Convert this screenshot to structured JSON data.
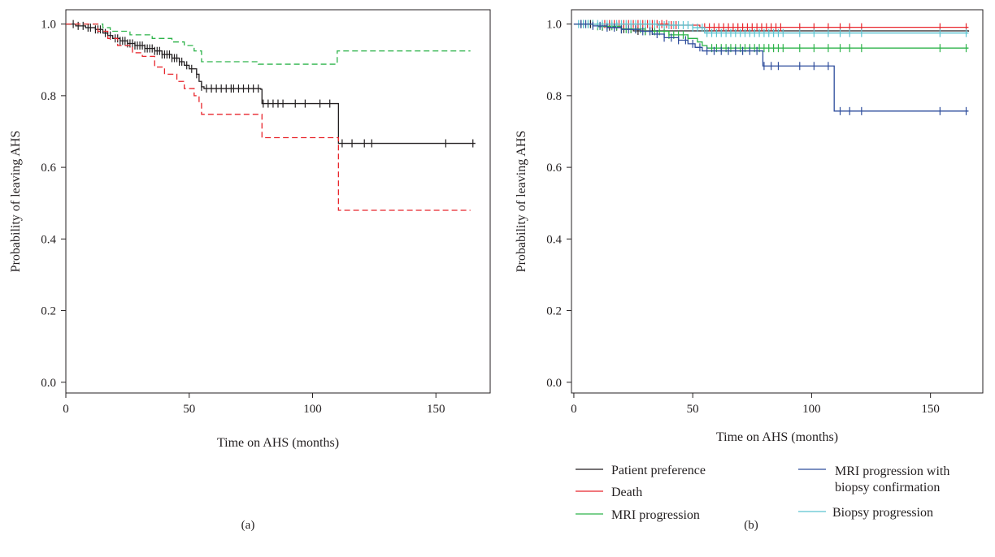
{
  "chart_data": [
    {
      "type": "line",
      "panel_label": "(a)",
      "xlabel": "Time on AHS (months)",
      "ylabel": "Probability of leaving AHS",
      "xlim": [
        0,
        172
      ],
      "ylim": [
        -0.03,
        1.04
      ],
      "xticks": [
        0,
        50,
        100,
        150
      ],
      "xtick_labels": [
        "0",
        "50",
        "100",
        "150"
      ],
      "yticks": [
        0.0,
        0.2,
        0.4,
        0.6,
        0.8,
        1.0
      ],
      "ytick_labels": [
        "0.0",
        "0.2",
        "0.4",
        "0.6",
        "0.8",
        "1.0"
      ],
      "grid": false,
      "series": [
        {
          "color": "#2db34a",
          "dash": "dashed",
          "step": true,
          "points": [
            [
              0,
              1.0
            ],
            [
              15,
              0.99
            ],
            [
              18,
              0.98
            ],
            [
              26,
              0.97
            ],
            [
              35,
              0.96
            ],
            [
              43,
              0.95
            ],
            [
              48,
              0.94
            ],
            [
              52,
              0.925
            ],
            [
              55,
              0.895
            ],
            [
              78,
              0.888
            ],
            [
              110,
              0.925
            ],
            [
              164,
              0.925
            ]
          ],
          "censor_x": []
        },
        {
          "color": "#231f20",
          "dash": "solid",
          "step": true,
          "points": [
            [
              0,
              1.0
            ],
            [
              4,
              0.995
            ],
            [
              8,
              0.99
            ],
            [
              12,
              0.985
            ],
            [
              15,
              0.975
            ],
            [
              17,
              0.968
            ],
            [
              19,
              0.96
            ],
            [
              22,
              0.953
            ],
            [
              25,
              0.946
            ],
            [
              28,
              0.94
            ],
            [
              32,
              0.932
            ],
            [
              36,
              0.925
            ],
            [
              39,
              0.915
            ],
            [
              43,
              0.905
            ],
            [
              46,
              0.895
            ],
            [
              48,
              0.885
            ],
            [
              50,
              0.875
            ],
            [
              53,
              0.86
            ],
            [
              54,
              0.84
            ],
            [
              55,
              0.825
            ],
            [
              56,
              0.82
            ],
            [
              79,
              0.818
            ],
            [
              79.5,
              0.778
            ],
            [
              110,
              0.778
            ],
            [
              110.5,
              0.667
            ],
            [
              166,
              0.667
            ]
          ],
          "censor_x": [
            3,
            5,
            7,
            9,
            10,
            12,
            13,
            14,
            16,
            18,
            20,
            21,
            22,
            23,
            24,
            25,
            26,
            27,
            28,
            29,
            30,
            31,
            32,
            33,
            34,
            35,
            36,
            37,
            38,
            39,
            40,
            41,
            42,
            43,
            44,
            45,
            46,
            47,
            49,
            51,
            53,
            55,
            57,
            59,
            61,
            63,
            65,
            67,
            68,
            70,
            72,
            74,
            76,
            78,
            80,
            82,
            84,
            86,
            88,
            93,
            97,
            103,
            107,
            112,
            116,
            121,
            124,
            154,
            165
          ]
        },
        {
          "color": "#e8262c",
          "dash": "dashed",
          "step": true,
          "points": [
            [
              0,
              1.0
            ],
            [
              13,
              0.98
            ],
            [
              17,
              0.96
            ],
            [
              21,
              0.94
            ],
            [
              27,
              0.92
            ],
            [
              31,
              0.91
            ],
            [
              36,
              0.88
            ],
            [
              40,
              0.86
            ],
            [
              45,
              0.84
            ],
            [
              48,
              0.82
            ],
            [
              52,
              0.8
            ],
            [
              54,
              0.78
            ],
            [
              55,
              0.748
            ],
            [
              79,
              0.748
            ],
            [
              79.5,
              0.683
            ],
            [
              110,
              0.683
            ],
            [
              110.5,
              0.48
            ],
            [
              164,
              0.48
            ]
          ],
          "censor_x": []
        }
      ]
    },
    {
      "type": "line",
      "panel_label": "(b)",
      "xlabel": "Time on AHS (months)",
      "ylabel": "Probability of leaving AHS",
      "xlim": [
        -1,
        172
      ],
      "ylim": [
        -0.03,
        1.04
      ],
      "xticks": [
        0,
        50,
        100,
        150
      ],
      "xtick_labels": [
        "0",
        "50",
        "100",
        "150"
      ],
      "yticks": [
        0.0,
        0.2,
        0.4,
        0.6,
        0.8,
        1.0
      ],
      "ytick_labels": [
        "0.0",
        "0.2",
        "0.4",
        "0.6",
        "0.8",
        "1.0"
      ],
      "grid": false,
      "legend_position": "below",
      "series": [
        {
          "name": "Patient preference",
          "color": "#231f20",
          "dash": "solid",
          "step": true,
          "points": [
            [
              0,
              1.0
            ],
            [
              10,
              0.993
            ],
            [
              20,
              0.986
            ],
            [
              25,
              0.981
            ],
            [
              166,
              0.979
            ]
          ],
          "censor_x": [
            3,
            7,
            12,
            15,
            18,
            21,
            24,
            27,
            30,
            33
          ]
        },
        {
          "name": "Death",
          "color": "#e8262c",
          "dash": "solid",
          "step": true,
          "points": [
            [
              0,
              1.0
            ],
            [
              40,
              0.997
            ],
            [
              53,
              0.991
            ],
            [
              166,
              0.991
            ]
          ],
          "censor_x": [
            13,
            15,
            17,
            19,
            21,
            23,
            25,
            27,
            29,
            31,
            33,
            35,
            37,
            39,
            41,
            43,
            55,
            57,
            59,
            61,
            63,
            65,
            67,
            69,
            71,
            73,
            75,
            77,
            79,
            81,
            83,
            85,
            87,
            95,
            101,
            107,
            112,
            116,
            121,
            154,
            165
          ]
        },
        {
          "name": "MRI progression",
          "color": "#2db34a",
          "dash": "solid",
          "step": true,
          "points": [
            [
              0,
              1.0
            ],
            [
              10,
              0.994
            ],
            [
              20,
              0.986
            ],
            [
              30,
              0.98
            ],
            [
              40,
              0.97
            ],
            [
              48,
              0.96
            ],
            [
              52,
              0.95
            ],
            [
              54,
              0.94
            ],
            [
              56,
              0.933
            ],
            [
              166,
              0.933
            ]
          ],
          "censor_x": [
            4,
            6,
            8,
            10,
            12,
            14,
            16,
            18,
            20,
            22,
            24,
            26,
            28,
            30,
            32,
            34,
            36,
            38,
            40,
            42,
            44,
            46,
            48,
            58,
            60,
            62,
            64,
            66,
            68,
            70,
            72,
            74,
            76,
            78,
            80,
            82,
            84,
            86,
            88,
            95,
            101,
            107,
            112,
            116,
            121,
            154,
            165
          ]
        },
        {
          "name": "Biopsy progression",
          "color": "#5bc4d1",
          "dash": "solid",
          "step": true,
          "points": [
            [
              0,
              1.0
            ],
            [
              35,
              0.997
            ],
            [
              50,
              0.99
            ],
            [
              55,
              0.975
            ],
            [
              166,
              0.975
            ]
          ],
          "censor_x": [
            2,
            4,
            6,
            8,
            10,
            12,
            14,
            16,
            18,
            20,
            22,
            24,
            26,
            28,
            30,
            32,
            34,
            36,
            38,
            40,
            42,
            44,
            46,
            48,
            50,
            52,
            54,
            56,
            58,
            60,
            62,
            64,
            66,
            68,
            70,
            72,
            74,
            76,
            78,
            80,
            82,
            84,
            86,
            88,
            95,
            101,
            107,
            112,
            116,
            121,
            154,
            165
          ]
        },
        {
          "name": "MRI progression with biopsy confirmation",
          "color": "#2e4d9c",
          "dash": "solid",
          "step": true,
          "points": [
            [
              0,
              1.0
            ],
            [
              8,
              0.995
            ],
            [
              14,
              0.99
            ],
            [
              20,
              0.985
            ],
            [
              28,
              0.98
            ],
            [
              33,
              0.972
            ],
            [
              38,
              0.962
            ],
            [
              44,
              0.955
            ],
            [
              48,
              0.945
            ],
            [
              51,
              0.935
            ],
            [
              54,
              0.925
            ],
            [
              79,
              0.925
            ],
            [
              79.5,
              0.883
            ],
            [
              109,
              0.883
            ],
            [
              109.5,
              0.757
            ],
            [
              166,
              0.757
            ]
          ],
          "censor_x": [
            3,
            5,
            8,
            11,
            14,
            17,
            20,
            23,
            26,
            29,
            32,
            35,
            38,
            41,
            44,
            47,
            50,
            53,
            56,
            59,
            62,
            65,
            68,
            71,
            74,
            77,
            80,
            83,
            86,
            95,
            101,
            107,
            112,
            116,
            121,
            154,
            165
          ]
        }
      ]
    }
  ]
}
